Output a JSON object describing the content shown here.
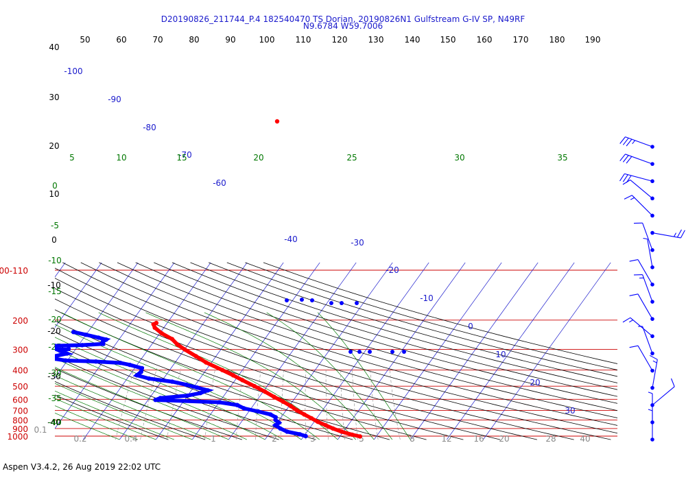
{
  "header": {
    "line1": "D20190826_211744_P.4 182540470 TS Dorian, 20190826N1 Gulfstream G-IV SP, N49RF",
    "line2": "N9.6784 W59.7006"
  },
  "footer": "Aspen V3.4.2, 26 Aug 2019  22:02 UTC",
  "colors": {
    "temperature": "#ff0000",
    "dewpoint": "#0000ff",
    "isobar": "#cc0000",
    "isotherm": "#1a1acc",
    "mixing_ratio": "#888888",
    "dry_adiabat": "#000000",
    "moist_adiabat": "#007700",
    "theta_labels": "#007700"
  },
  "chart_data": {
    "type": "skew-t",
    "pressure_ticks": [
      "100-110",
      "200",
      "300",
      "400",
      "500",
      "600",
      "700",
      "800",
      "900",
      "1000"
    ],
    "top_axis_labels": [
      "50",
      "60",
      "70",
      "80",
      "90",
      "100",
      "110",
      "120",
      "130",
      "140",
      "150",
      "160",
      "170",
      "180",
      "190"
    ],
    "left_axis_labels": [
      "40",
      "30",
      "20",
      "10",
      "0",
      "-10",
      "-20",
      "-30",
      "-40"
    ],
    "isotherm_labels": [
      "-100",
      "-90",
      "-80",
      "-70",
      "-60",
      "-40",
      "-30",
      "-20",
      "-10",
      "0",
      "10",
      "20",
      "30"
    ],
    "moist_adiabat_top_labels": [
      "5",
      "10",
      "15",
      "20",
      "25",
      "30",
      "35"
    ],
    "moist_adiabat_left_labels": [
      "0",
      "-5",
      "-10",
      "-15",
      "-20",
      "-25",
      "-30",
      "-35",
      "-40"
    ],
    "mixing_ratio_labels": [
      "0.1",
      "0.2",
      "0.4",
      "1",
      "2",
      "3",
      "5",
      "8",
      "12",
      "16",
      "20",
      "28",
      "40"
    ],
    "temperature": [
      {
        "p": 208,
        "t": -53.0
      },
      {
        "p": 212,
        "t": -53.5
      },
      {
        "p": 222,
        "t": -52.5
      },
      {
        "p": 240,
        "t": -49.5
      },
      {
        "p": 260,
        "t": -45.5
      },
      {
        "p": 280,
        "t": -43.0
      },
      {
        "p": 300,
        "t": -40.0
      },
      {
        "p": 330,
        "t": -35.5
      },
      {
        "p": 360,
        "t": -31.5
      },
      {
        "p": 400,
        "t": -25.5
      },
      {
        "p": 430,
        "t": -21.5
      },
      {
        "p": 460,
        "t": -18.0
      },
      {
        "p": 500,
        "t": -13.5
      },
      {
        "p": 540,
        "t": -9.5
      },
      {
        "p": 580,
        "t": -6.0
      },
      {
        "p": 620,
        "t": -2.5
      },
      {
        "p": 660,
        "t": 0.5
      },
      {
        "p": 700,
        "t": 3.0
      },
      {
        "p": 740,
        "t": 5.8
      },
      {
        "p": 780,
        "t": 8.5
      },
      {
        "p": 820,
        "t": 11.0
      },
      {
        "p": 860,
        "t": 13.8
      },
      {
        "p": 900,
        "t": 16.5
      },
      {
        "p": 940,
        "t": 19.5
      },
      {
        "p": 980,
        "t": 23.0
      },
      {
        "p": 1005,
        "t": 25.5
      }
    ],
    "dewpoint": [
      {
        "p": 236,
        "t": -74.0
      },
      {
        "p": 245,
        "t": -70.0
      },
      {
        "p": 255,
        "t": -66.0
      },
      {
        "p": 262,
        "t": -63.5
      },
      {
        "p": 270,
        "t": -64.0
      },
      {
        "p": 278,
        "t": -63.5
      },
      {
        "p": 283,
        "t": -69.0
      },
      {
        "p": 286,
        "t": -76.5
      },
      {
        "p": 292,
        "t": -78.0
      },
      {
        "p": 298,
        "t": -72.0
      },
      {
        "p": 306,
        "t": -74.0
      },
      {
        "p": 318,
        "t": -71.5
      },
      {
        "p": 330,
        "t": -74.5
      },
      {
        "p": 342,
        "t": -74.0
      },
      {
        "p": 350,
        "t": -70.5
      },
      {
        "p": 355,
        "t": -62.0
      },
      {
        "p": 362,
        "t": -55.0
      },
      {
        "p": 372,
        "t": -52.0
      },
      {
        "p": 390,
        "t": -48.0
      },
      {
        "p": 410,
        "t": -47.5
      },
      {
        "p": 430,
        "t": -48.0
      },
      {
        "p": 450,
        "t": -44.0
      },
      {
        "p": 470,
        "t": -37.0
      },
      {
        "p": 490,
        "t": -32.5
      },
      {
        "p": 510,
        "t": -29.0
      },
      {
        "p": 530,
        "t": -25.5
      },
      {
        "p": 550,
        "t": -27.0
      },
      {
        "p": 570,
        "t": -30.0
      },
      {
        "p": 590,
        "t": -37.0
      },
      {
        "p": 605,
        "t": -38.0
      },
      {
        "p": 625,
        "t": -20.0
      },
      {
        "p": 650,
        "t": -14.5
      },
      {
        "p": 680,
        "t": -12.0
      },
      {
        "p": 710,
        "t": -7.5
      },
      {
        "p": 740,
        "t": -3.5
      },
      {
        "p": 770,
        "t": -1.5
      },
      {
        "p": 800,
        "t": -1.0
      },
      {
        "p": 830,
        "t": 0.5
      },
      {
        "p": 860,
        "t": 0.0
      },
      {
        "p": 900,
        "t": 2.0
      },
      {
        "p": 940,
        "t": 4.5
      },
      {
        "p": 975,
        "t": 8.5
      },
      {
        "p": 1000,
        "t": 10.5
      }
    ],
    "wind_barbs": [
      {
        "dir": 290,
        "spd": 35
      },
      {
        "dir": 290,
        "spd": 30
      },
      {
        "dir": 285,
        "spd": 30
      },
      {
        "dir": 310,
        "spd": 10
      },
      {
        "dir": 315,
        "spd": 15
      },
      {
        "dir": 100,
        "spd": 25
      },
      {
        "dir": 340,
        "spd": 10
      },
      {
        "dir": 350,
        "spd": 5
      },
      {
        "dir": 330,
        "spd": 10
      },
      {
        "dir": 340,
        "spd": 15
      },
      {
        "dir": 330,
        "spd": 10
      },
      {
        "dir": 310,
        "spd": 15
      },
      {
        "dir": 340,
        "spd": 5
      },
      {
        "dir": 330,
        "spd": 10
      },
      {
        "dir": 10,
        "spd": 15
      },
      {
        "dir": 50,
        "spd": 10
      },
      {
        "dir": 0,
        "spd": 5
      },
      {
        "dir": 0,
        "spd": 5
      }
    ]
  }
}
